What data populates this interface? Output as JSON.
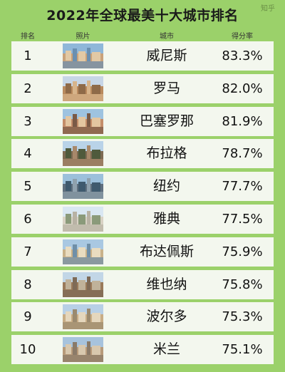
{
  "title": "2022年全球最美十大城市排名",
  "watermark": "知乎",
  "headers": {
    "rank": "排名",
    "photo": "照片",
    "city": "城市",
    "score": "得分率"
  },
  "rows": [
    {
      "rank": "1",
      "city": "威尼斯",
      "score": "83.3%",
      "photo": "venice-photo"
    },
    {
      "rank": "2",
      "city": "罗马",
      "score": "82.0%",
      "photo": "rome-photo"
    },
    {
      "rank": "3",
      "city": "巴塞罗那",
      "score": "81.9%",
      "photo": "barcelona-photo"
    },
    {
      "rank": "4",
      "city": "布拉格",
      "score": "78.7%",
      "photo": "prague-photo"
    },
    {
      "rank": "5",
      "city": "纽约",
      "score": "77.7%",
      "photo": "new-york-photo"
    },
    {
      "rank": "6",
      "city": "雅典",
      "score": "77.5%",
      "photo": "athens-photo"
    },
    {
      "rank": "7",
      "city": "布达佩斯",
      "score": "75.9%",
      "photo": "budapest-photo"
    },
    {
      "rank": "8",
      "city": "维也纳",
      "score": "75.8%",
      "photo": "vienna-photo"
    },
    {
      "rank": "9",
      "city": "波尔多",
      "score": "75.3%",
      "photo": "bordeaux-photo"
    },
    {
      "rank": "10",
      "city": "米兰",
      "score": "75.1%",
      "photo": "milan-photo"
    }
  ],
  "colors": {
    "background": "#9bd16a",
    "row": "#f3f7ee",
    "text": "#111111"
  }
}
